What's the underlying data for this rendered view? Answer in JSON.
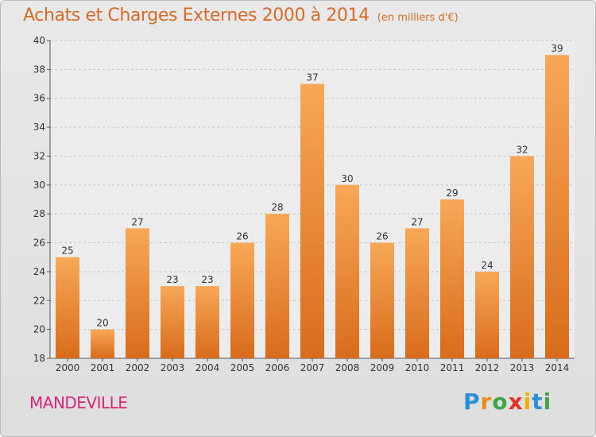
{
  "header": {
    "title": "Achats et Charges Externes 2000 à 2014",
    "unit": "(en milliers d'€)"
  },
  "footer": {
    "city": "MANDEVILLE",
    "logo": [
      "P",
      "r",
      "o",
      "x",
      "i",
      "t",
      "i"
    ]
  },
  "colors": {
    "bar_top": "#f7a857",
    "bar_bottom": "#d86c1c",
    "title": "#d86b27",
    "city": "#d8267a",
    "logo": [
      "#2a8fd4",
      "#e88b1a",
      "#3fa648",
      "#e5332a",
      "#f0b400",
      "#2a8fd4",
      "#3fa648"
    ]
  },
  "chart_data": {
    "type": "bar",
    "title": "Achats et Charges Externes 2000 à 2014",
    "categories": [
      "2000",
      "2001",
      "2002",
      "2003",
      "2004",
      "2005",
      "2006",
      "2007",
      "2008",
      "2009",
      "2010",
      "2011",
      "2012",
      "2013",
      "2014"
    ],
    "values": [
      25,
      20,
      27,
      23,
      23,
      26,
      28,
      37,
      30,
      26,
      27,
      29,
      24,
      32,
      39
    ],
    "ylim": [
      18,
      40
    ],
    "yticks": [
      18,
      20,
      22,
      24,
      26,
      28,
      30,
      32,
      34,
      36,
      38,
      40
    ],
    "grid": true,
    "data_labels": true
  }
}
